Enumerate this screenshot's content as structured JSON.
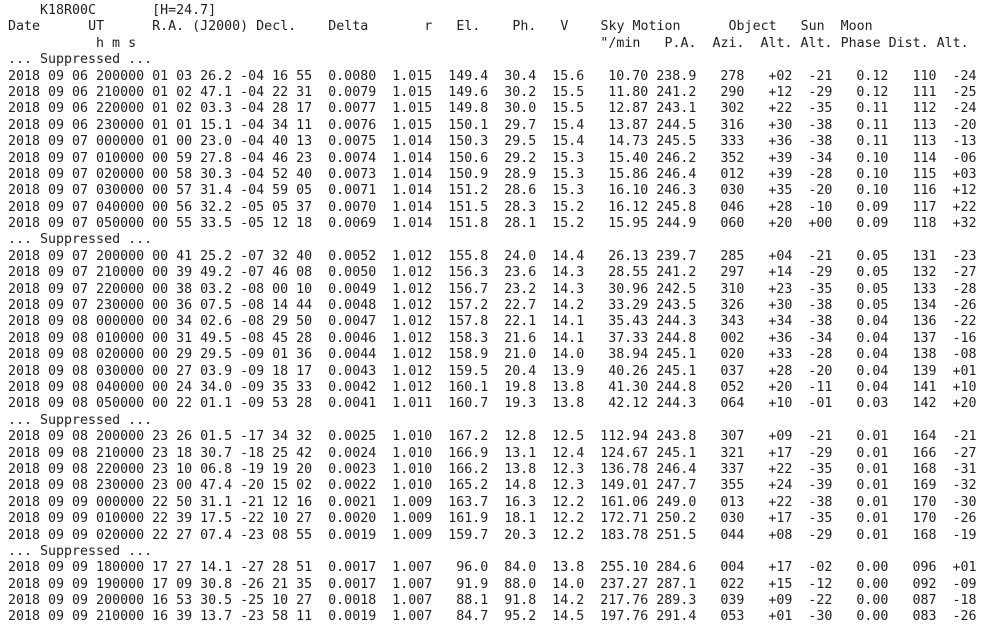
{
  "title": {
    "designation": "K18R00C",
    "h_value": "[H=24.7]"
  },
  "header": {
    "date": "Date",
    "ut": "UT",
    "ra_decl": "R.A. (J2000) Decl.",
    "delta": "Delta",
    "r": "r",
    "el": "El.",
    "ph": "Ph.",
    "v": "V",
    "sky_motion": "Sky Motion",
    "object": "Object",
    "sun": "Sun",
    "moon": "Moon",
    "sub": {
      "hms": "h m s",
      "arcsec_per_min": "\"/min",
      "pa": "P.A.",
      "azi": "Azi.",
      "alt": "Alt.",
      "sun_alt": "Alt.",
      "phase": "Phase",
      "dist": "Dist.",
      "moon_alt": "Alt."
    }
  },
  "suppressed_label": "... Suppressed ...",
  "colors": {
    "text": "#1f1f1f",
    "background": "#ffffff"
  },
  "sections": [
    {
      "rows": [
        [
          "2018 09 06 200000",
          "01 03 26.2",
          "-04 16 55",
          "0.0080",
          "1.015",
          "149.4",
          "30.4",
          "15.6",
          "10.70",
          "238.9",
          "278",
          "+02",
          "-21",
          "0.12",
          "110",
          "-24"
        ],
        [
          "2018 09 06 210000",
          "01 02 47.1",
          "-04 22 31",
          "0.0079",
          "1.015",
          "149.6",
          "30.2",
          "15.5",
          "11.80",
          "241.2",
          "290",
          "+12",
          "-29",
          "0.12",
          "111",
          "-25"
        ],
        [
          "2018 09 06 220000",
          "01 02 03.3",
          "-04 28 17",
          "0.0077",
          "1.015",
          "149.8",
          "30.0",
          "15.5",
          "12.87",
          "243.1",
          "302",
          "+22",
          "-35",
          "0.11",
          "112",
          "-24"
        ],
        [
          "2018 09 06 230000",
          "01 01 15.1",
          "-04 34 11",
          "0.0076",
          "1.015",
          "150.1",
          "29.7",
          "15.4",
          "13.87",
          "244.5",
          "316",
          "+30",
          "-38",
          "0.11",
          "113",
          "-20"
        ],
        [
          "2018 09 07 000000",
          "01 00 23.0",
          "-04 40 13",
          "0.0075",
          "1.014",
          "150.3",
          "29.5",
          "15.4",
          "14.73",
          "245.5",
          "333",
          "+36",
          "-38",
          "0.11",
          "113",
          "-13"
        ],
        [
          "2018 09 07 010000",
          "00 59 27.8",
          "-04 46 23",
          "0.0074",
          "1.014",
          "150.6",
          "29.2",
          "15.3",
          "15.40",
          "246.2",
          "352",
          "+39",
          "-34",
          "0.10",
          "114",
          "-06"
        ],
        [
          "2018 09 07 020000",
          "00 58 30.3",
          "-04 52 40",
          "0.0073",
          "1.014",
          "150.9",
          "28.9",
          "15.3",
          "15.86",
          "246.4",
          "012",
          "+39",
          "-28",
          "0.10",
          "115",
          "+03"
        ],
        [
          "2018 09 07 030000",
          "00 57 31.4",
          "-04 59 05",
          "0.0071",
          "1.014",
          "151.2",
          "28.6",
          "15.3",
          "16.10",
          "246.3",
          "030",
          "+35",
          "-20",
          "0.10",
          "116",
          "+12"
        ],
        [
          "2018 09 07 040000",
          "00 56 32.2",
          "-05 05 37",
          "0.0070",
          "1.014",
          "151.5",
          "28.3",
          "15.2",
          "16.12",
          "245.8",
          "046",
          "+28",
          "-10",
          "0.09",
          "117",
          "+22"
        ],
        [
          "2018 09 07 050000",
          "00 55 33.5",
          "-05 12 18",
          "0.0069",
          "1.014",
          "151.8",
          "28.1",
          "15.2",
          "15.95",
          "244.9",
          "060",
          "+20",
          "+00",
          "0.09",
          "118",
          "+32"
        ]
      ]
    },
    {
      "rows": [
        [
          "2018 09 07 200000",
          "00 41 25.2",
          "-07 32 40",
          "0.0052",
          "1.012",
          "155.8",
          "24.0",
          "14.4",
          "26.13",
          "239.7",
          "285",
          "+04",
          "-21",
          "0.05",
          "131",
          "-23"
        ],
        [
          "2018 09 07 210000",
          "00 39 49.2",
          "-07 46 08",
          "0.0050",
          "1.012",
          "156.3",
          "23.6",
          "14.3",
          "28.55",
          "241.2",
          "297",
          "+14",
          "-29",
          "0.05",
          "132",
          "-27"
        ],
        [
          "2018 09 07 220000",
          "00 38 03.2",
          "-08 00 10",
          "0.0049",
          "1.012",
          "156.7",
          "23.2",
          "14.3",
          "30.96",
          "242.5",
          "310",
          "+23",
          "-35",
          "0.05",
          "133",
          "-28"
        ],
        [
          "2018 09 07 230000",
          "00 36 07.5",
          "-08 14 44",
          "0.0048",
          "1.012",
          "157.2",
          "22.7",
          "14.2",
          "33.29",
          "243.5",
          "326",
          "+30",
          "-38",
          "0.05",
          "134",
          "-26"
        ],
        [
          "2018 09 08 000000",
          "00 34 02.6",
          "-08 29 50",
          "0.0047",
          "1.012",
          "157.8",
          "22.1",
          "14.1",
          "35.43",
          "244.3",
          "343",
          "+34",
          "-38",
          "0.04",
          "136",
          "-22"
        ],
        [
          "2018 09 08 010000",
          "00 31 49.5",
          "-08 45 28",
          "0.0046",
          "1.012",
          "158.3",
          "21.6",
          "14.1",
          "37.33",
          "244.8",
          "002",
          "+36",
          "-34",
          "0.04",
          "137",
          "-16"
        ],
        [
          "2018 09 08 020000",
          "00 29 29.5",
          "-09 01 36",
          "0.0044",
          "1.012",
          "158.9",
          "21.0",
          "14.0",
          "38.94",
          "245.1",
          "020",
          "+33",
          "-28",
          "0.04",
          "138",
          "-08"
        ],
        [
          "2018 09 08 030000",
          "00 27 03.9",
          "-09 18 17",
          "0.0043",
          "1.012",
          "159.5",
          "20.4",
          "13.9",
          "40.26",
          "245.1",
          "037",
          "+28",
          "-20",
          "0.04",
          "139",
          "+01"
        ],
        [
          "2018 09 08 040000",
          "00 24 34.0",
          "-09 35 33",
          "0.0042",
          "1.012",
          "160.1",
          "19.8",
          "13.8",
          "41.30",
          "244.8",
          "052",
          "+20",
          "-11",
          "0.04",
          "141",
          "+10"
        ],
        [
          "2018 09 08 050000",
          "00 22 01.1",
          "-09 53 28",
          "0.0041",
          "1.011",
          "160.7",
          "19.3",
          "13.8",
          "42.12",
          "244.3",
          "064",
          "+10",
          "-01",
          "0.03",
          "142",
          "+20"
        ]
      ]
    },
    {
      "rows": [
        [
          "2018 09 08 200000",
          "23 26 01.5",
          "-17 34 32",
          "0.0025",
          "1.010",
          "167.2",
          "12.8",
          "12.5",
          "112.94",
          "243.8",
          "307",
          "+09",
          "-21",
          "0.01",
          "164",
          "-21"
        ],
        [
          "2018 09 08 210000",
          "23 18 30.7",
          "-18 25 42",
          "0.0024",
          "1.010",
          "166.9",
          "13.1",
          "12.4",
          "124.67",
          "245.1",
          "321",
          "+17",
          "-29",
          "0.01",
          "166",
          "-27"
        ],
        [
          "2018 09 08 220000",
          "23 10 06.8",
          "-19 19 20",
          "0.0023",
          "1.010",
          "166.2",
          "13.8",
          "12.3",
          "136.78",
          "246.4",
          "337",
          "+22",
          "-35",
          "0.01",
          "168",
          "-31"
        ],
        [
          "2018 09 08 230000",
          "23 00 47.4",
          "-20 15 02",
          "0.0022",
          "1.010",
          "165.2",
          "14.8",
          "12.3",
          "149.01",
          "247.7",
          "355",
          "+24",
          "-39",
          "0.01",
          "169",
          "-32"
        ],
        [
          "2018 09 09 000000",
          "22 50 31.1",
          "-21 12 16",
          "0.0021",
          "1.009",
          "163.7",
          "16.3",
          "12.2",
          "161.06",
          "249.0",
          "013",
          "+22",
          "-38",
          "0.01",
          "170",
          "-30"
        ],
        [
          "2018 09 09 010000",
          "22 39 17.5",
          "-22 10 27",
          "0.0020",
          "1.009",
          "161.9",
          "18.1",
          "12.2",
          "172.71",
          "250.2",
          "030",
          "+17",
          "-35",
          "0.01",
          "170",
          "-26"
        ],
        [
          "2018 09 09 020000",
          "22 27 07.4",
          "-23 08 55",
          "0.0019",
          "1.009",
          "159.7",
          "20.3",
          "12.2",
          "183.78",
          "251.5",
          "044",
          "+08",
          "-29",
          "0.01",
          "168",
          "-19"
        ]
      ]
    },
    {
      "rows": [
        [
          "2018 09 09 180000",
          "17 27 14.1",
          "-27 28 51",
          "0.0017",
          "1.007",
          "96.0",
          "84.0",
          "13.8",
          "255.10",
          "284.6",
          "004",
          "+17",
          "-02",
          "0.00",
          "096",
          "+01"
        ],
        [
          "2018 09 09 190000",
          "17 09 30.8",
          "-26 21 35",
          "0.0017",
          "1.007",
          "91.9",
          "88.0",
          "14.0",
          "237.27",
          "287.1",
          "022",
          "+15",
          "-12",
          "0.00",
          "092",
          "-09"
        ],
        [
          "2018 09 09 200000",
          "16 53 30.5",
          "-25 10 27",
          "0.0018",
          "1.007",
          "88.1",
          "91.8",
          "14.2",
          "217.76",
          "289.3",
          "039",
          "+09",
          "-22",
          "0.00",
          "087",
          "-18"
        ],
        [
          "2018 09 09 210000",
          "16 39 13.7",
          "-23 58 11",
          "0.0019",
          "1.007",
          "84.7",
          "95.2",
          "14.5",
          "197.76",
          "291.4",
          "053",
          "+01",
          "-30",
          "0.00",
          "083",
          "-26"
        ]
      ]
    }
  ]
}
